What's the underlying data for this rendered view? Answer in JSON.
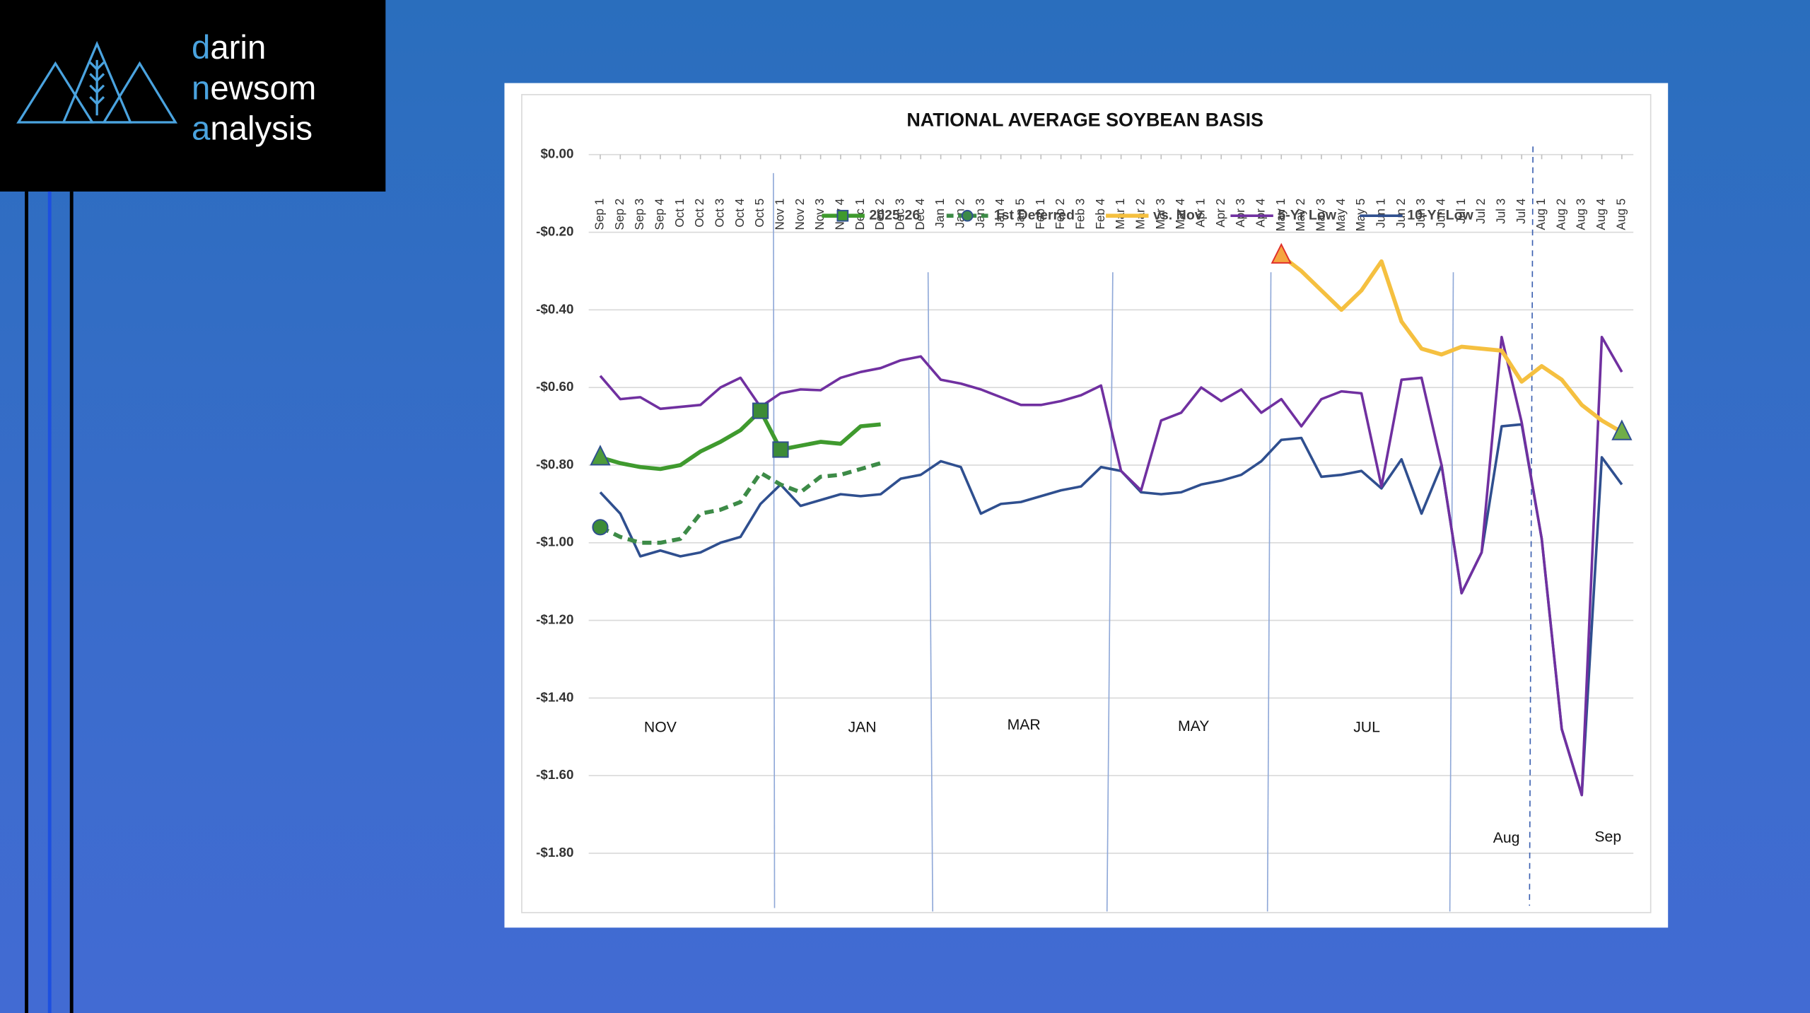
{
  "logo": {
    "lines": [
      "darin",
      "newsom",
      "analysis"
    ]
  },
  "chart_data": {
    "type": "line",
    "title": "NATIONAL AVERAGE SOYBEAN BASIS",
    "categories": [
      "Sep 1",
      "Sep 2",
      "Sep 3",
      "Sep 4",
      "Oct 1",
      "Oct 2",
      "Oct 3",
      "Oct 4",
      "Oct 5",
      "Nov 1",
      "Nov 2",
      "Nov 3",
      "Nov 4",
      "Dec 1",
      "Dec 2",
      "Dec 3",
      "Dec 4",
      "Jan 1",
      "Jan 2",
      "Jan 3",
      "Jan 4",
      "Jan 5",
      "Feb 1",
      "Feb 2",
      "Feb 3",
      "Feb 4",
      "Mar 1",
      "Mar 2",
      "Mar 3",
      "Mar 4",
      "Apr 1",
      "Apr 2",
      "Apr 3",
      "Apr 4",
      "May 1",
      "May 2",
      "May 3",
      "May 4",
      "May 5",
      "Jun 1",
      "Jun 2",
      "Jun 3",
      "Jun 4",
      "Jul 1",
      "Jul 2",
      "Jul 3",
      "Jul 4",
      "Aug 1",
      "Aug 2",
      "Aug 3",
      "Aug 4",
      "Aug 5"
    ],
    "series": [
      {
        "name": "2025-26",
        "color": "#3f9a2e",
        "width": 3.5,
        "marker": "square",
        "markers": [
          {
            "index": 0,
            "shape": "triangle",
            "color": "#4d9b3a"
          },
          {
            "index": 8,
            "shape": "square",
            "color": "#3d8b37"
          },
          {
            "index": 9,
            "shape": "square",
            "color": "#3d8b37"
          }
        ],
        "values": [
          -0.78,
          -0.795,
          -0.805,
          -0.81,
          -0.8,
          -0.765,
          -0.74,
          -0.71,
          -0.66,
          -0.76,
          -0.75,
          -0.74,
          -0.745,
          -0.7,
          -0.695,
          null,
          null,
          null,
          null,
          null,
          null,
          null,
          null,
          null,
          null,
          null,
          null,
          null,
          null,
          null,
          null,
          null,
          null,
          null,
          null,
          null,
          null,
          null,
          null,
          null,
          null,
          null,
          null,
          null,
          null,
          null,
          null,
          null,
          null,
          null,
          null,
          null
        ]
      },
      {
        "name": "1st Deferred",
        "color": "#3d8b47",
        "width": 3.5,
        "dashed": true,
        "marker": "circle",
        "markers": [
          {
            "index": 0,
            "shape": "circle",
            "color": "#3d8b37"
          }
        ],
        "values": [
          -0.96,
          -0.985,
          -1.0,
          -1.0,
          -0.99,
          -0.925,
          -0.915,
          -0.895,
          -0.82,
          -0.85,
          -0.87,
          -0.83,
          -0.825,
          -0.81,
          -0.795,
          null,
          null,
          null,
          null,
          null,
          null,
          null,
          null,
          null,
          null,
          null,
          null,
          null,
          null,
          null,
          null,
          null,
          null,
          null,
          null,
          null,
          null,
          null,
          null,
          null,
          null,
          null,
          null,
          null,
          null,
          null,
          null,
          null,
          null,
          null,
          null,
          null
        ]
      },
      {
        "name": "vs. Nov",
        "color": "#f5c040",
        "width": 3.5,
        "markers": [
          {
            "index": 34,
            "shape": "triangle",
            "color": "#f5a540"
          },
          {
            "index": 51,
            "shape": "triangle",
            "color": "#70ad47"
          }
        ],
        "values": [
          null,
          null,
          null,
          null,
          null,
          null,
          null,
          null,
          null,
          null,
          null,
          null,
          null,
          null,
          null,
          null,
          null,
          null,
          null,
          null,
          null,
          null,
          null,
          null,
          null,
          null,
          null,
          null,
          null,
          null,
          null,
          null,
          null,
          null,
          -0.26,
          -0.3,
          -0.35,
          -0.4,
          -0.35,
          -0.275,
          -0.43,
          -0.5,
          -0.515,
          -0.495,
          -0.5,
          -0.505,
          -0.585,
          -0.545,
          -0.58,
          -0.645,
          -0.685,
          -0.715
        ]
      },
      {
        "name": "5-Yr Low",
        "color": "#7030a0",
        "width": 2.2,
        "values": [
          -0.57,
          -0.63,
          -0.625,
          -0.655,
          -0.65,
          -0.645,
          -0.6,
          -0.575,
          -0.65,
          -0.615,
          -0.605,
          -0.607,
          -0.575,
          -0.56,
          -0.55,
          -0.53,
          -0.52,
          -0.58,
          -0.59,
          -0.605,
          -0.625,
          -0.645,
          -0.645,
          -0.635,
          -0.62,
          -0.595,
          -0.815,
          -0.865,
          -0.685,
          -0.665,
          -0.6,
          -0.635,
          -0.605,
          -0.665,
          -0.63,
          -0.7,
          -0.63,
          -0.61,
          -0.615,
          -0.855,
          -0.58,
          -0.575,
          -0.8,
          -1.13,
          -1.025,
          -0.47,
          -0.69,
          -0.99,
          -1.48,
          -1.65,
          -0.47,
          -0.56
        ]
      },
      {
        "name": "10-Yr Low",
        "color": "#2f4f8f",
        "width": 2.2,
        "values": [
          -0.87,
          -0.925,
          -1.035,
          -1.02,
          -1.035,
          -1.025,
          -1.0,
          -0.985,
          -0.9,
          -0.85,
          -0.905,
          -0.89,
          -0.875,
          -0.88,
          -0.875,
          -0.835,
          -0.825,
          -0.79,
          -0.805,
          -0.925,
          -0.9,
          -0.895,
          -0.88,
          -0.865,
          -0.855,
          -0.805,
          -0.815,
          -0.87,
          -0.875,
          -0.87,
          -0.85,
          -0.84,
          -0.825,
          -0.79,
          -0.735,
          -0.73,
          -0.83,
          -0.825,
          -0.815,
          -0.86,
          -0.785,
          -0.925,
          -0.8,
          -1.13,
          -1.025,
          -0.7,
          -0.695,
          -0.99,
          -1.48,
          -1.65,
          -0.78,
          -0.85
        ]
      }
    ],
    "ylim": [
      -1.95,
      0
    ],
    "yticks": [
      {
        "value": 0,
        "label": "$0.00"
      },
      {
        "value": -0.2,
        "label": "-$0.20"
      },
      {
        "value": -0.4,
        "label": "-$0.40"
      },
      {
        "value": -0.6,
        "label": "-$0.60"
      },
      {
        "value": -0.8,
        "label": "-$0.80"
      },
      {
        "value": -1.0,
        "label": "-$1.00"
      },
      {
        "value": -1.2,
        "label": "-$1.20"
      },
      {
        "value": -1.4,
        "label": "-$1.40"
      },
      {
        "value": -1.6,
        "label": "-$1.60"
      },
      {
        "value": -1.8,
        "label": "-$1.80"
      }
    ],
    "annotations": [
      "NOV",
      "JAN",
      "MAR",
      "MAY",
      "JUL",
      "Aug",
      "Sep"
    ],
    "grid": true,
    "legend": "top"
  }
}
